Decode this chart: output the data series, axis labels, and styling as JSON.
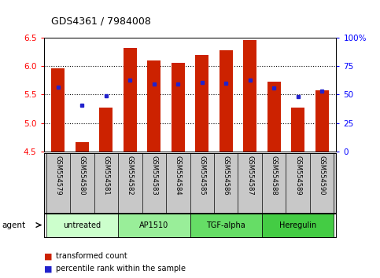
{
  "title": "GDS4361 / 7984008",
  "samples": [
    "GSM554579",
    "GSM554580",
    "GSM554581",
    "GSM554582",
    "GSM554583",
    "GSM554584",
    "GSM554585",
    "GSM554586",
    "GSM554587",
    "GSM554588",
    "GSM554589",
    "GSM554590"
  ],
  "bar_values": [
    5.96,
    4.67,
    5.27,
    6.32,
    6.1,
    6.05,
    6.2,
    6.27,
    6.46,
    5.73,
    5.27,
    5.57
  ],
  "bar_bottom": 4.5,
  "blue_values": [
    5.63,
    5.31,
    5.48,
    5.75,
    5.69,
    5.69,
    5.71,
    5.7,
    5.75,
    5.62,
    5.46,
    5.56
  ],
  "agents": [
    {
      "label": "untreated",
      "start": 0,
      "end": 3,
      "color": "#ccffcc"
    },
    {
      "label": "AP1510",
      "start": 3,
      "end": 6,
      "color": "#99ee99"
    },
    {
      "label": "TGF-alpha",
      "start": 6,
      "end": 9,
      "color": "#66dd66"
    },
    {
      "label": "Heregulin",
      "start": 9,
      "end": 12,
      "color": "#44cc44"
    }
  ],
  "ylim_left": [
    4.5,
    6.5
  ],
  "ylim_right": [
    0,
    100
  ],
  "yticks_left": [
    4.5,
    5.0,
    5.5,
    6.0,
    6.5
  ],
  "yticks_right": [
    0,
    25,
    50,
    75,
    100
  ],
  "ytick_labels_right": [
    "0",
    "25",
    "50",
    "75",
    "100%"
  ],
  "bar_color": "#cc2200",
  "blue_color": "#2222cc",
  "background_color": "#ffffff",
  "tick_area_color": "#c8c8c8",
  "legend_items": [
    {
      "label": "transformed count",
      "color": "#cc2200"
    },
    {
      "label": "percentile rank within the sample",
      "color": "#2222cc"
    }
  ]
}
